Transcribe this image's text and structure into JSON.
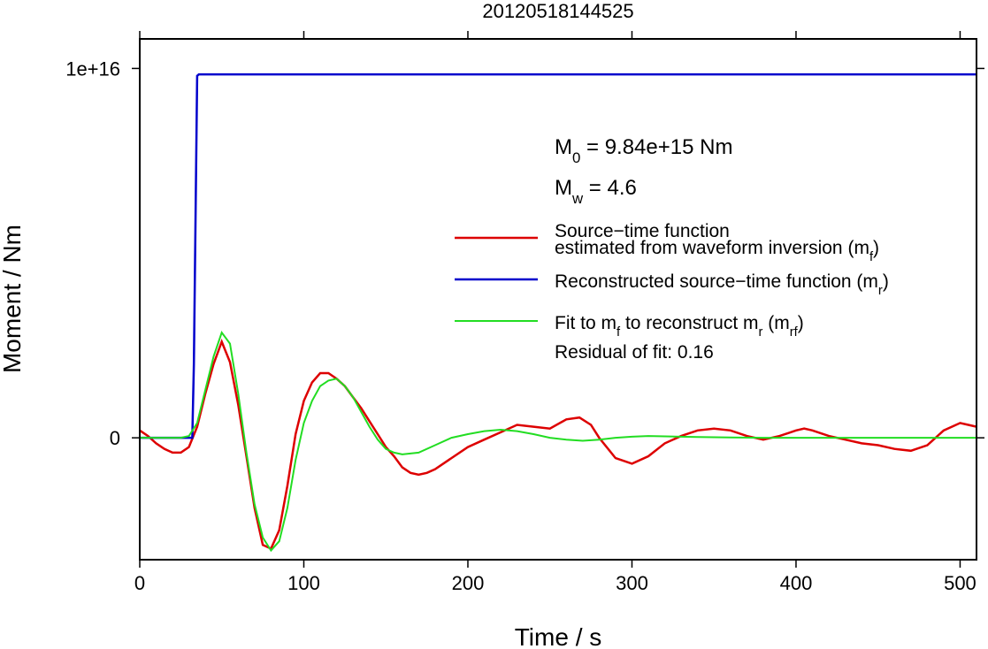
{
  "chart_data": {
    "type": "line",
    "title": "20120518144525",
    "xlabel": "Time / s",
    "ylabel": "Moment / Nm",
    "xlim": [
      0,
      510
    ],
    "ylim": [
      -3300000000000000.0,
      1.08e+16
    ],
    "x_ticks": [
      0,
      100,
      200,
      300,
      400,
      500
    ],
    "x_tick_labels": [
      "0",
      "100",
      "200",
      "300",
      "400",
      "500"
    ],
    "y_ticks": [
      0,
      1e+16
    ],
    "y_tick_labels": [
      "0",
      "1e+16"
    ],
    "grid": false,
    "legend_position": "right",
    "annotations": {
      "m0": {
        "main": "M",
        "sub": "0",
        "rest": " = 9.84e+15 Nm"
      },
      "mw": {
        "main": "M",
        "sub": "w",
        "rest": " = 4.6"
      }
    },
    "legend": [
      {
        "lines": [
          "Source−time function",
          "estimated from waveform inversion (m"
        ],
        "sub": "f",
        "tail": ")",
        "color": "#dd0000"
      },
      {
        "lines": [
          "Reconstructed source−time function (m"
        ],
        "sub": "r",
        "tail": ")",
        "color": "#0000cc"
      },
      {
        "lines": [
          "Fit to m"
        ],
        "sub": "f",
        "tail": " to reconstruct m",
        "sub2": "r",
        "tail2": " (m",
        "sub3": "rf",
        "tail3": ")",
        "color": "#22dd22"
      }
    ],
    "residual_text": "Residual of fit: 0.16",
    "series": [
      {
        "color": "#dd0000",
        "x": [
          0,
          5,
          10,
          15,
          20,
          25,
          30,
          35,
          40,
          45,
          50,
          55,
          60,
          65,
          70,
          75,
          80,
          85,
          90,
          95,
          100,
          105,
          110,
          115,
          120,
          125,
          130,
          135,
          140,
          145,
          150,
          155,
          160,
          165,
          170,
          175,
          180,
          190,
          200,
          210,
          220,
          230,
          240,
          250,
          260,
          268,
          275,
          280,
          290,
          300,
          310,
          320,
          330,
          340,
          350,
          360,
          370,
          380,
          390,
          400,
          405,
          410,
          420,
          430,
          440,
          450,
          460,
          470,
          480,
          490,
          500,
          505,
          510
        ],
        "y": [
          200000000000000.0,
          50000000000000.0,
          -150000000000000.0,
          -300000000000000.0,
          -400000000000000.0,
          -400000000000000.0,
          -250000000000000.0,
          300000000000000.0,
          1200000000000000.0,
          2000000000000000.0,
          2600000000000000.0,
          2050000000000000.0,
          900000000000000.0,
          -500000000000000.0,
          -1900000000000000.0,
          -2900000000000000.0,
          -3000000000000000.0,
          -2500000000000000.0,
          -1300000000000000.0,
          100000000000000.0,
          1000000000000000.0,
          1500000000000000.0,
          1750000000000000.0,
          1750000000000000.0,
          1600000000000000.0,
          1400000000000000.0,
          1100000000000000.0,
          800000000000000.0,
          450000000000000.0,
          100000000000000.0,
          -250000000000000.0,
          -500000000000000.0,
          -800000000000000.0,
          -950000000000000.0,
          -1000000000000000.0,
          -950000000000000.0,
          -850000000000000.0,
          -550000000000000.0,
          -250000000000000.0,
          -50000000000000.0,
          150000000000000.0,
          350000000000000.0,
          300000000000000.0,
          250000000000000.0,
          500000000000000.0,
          550000000000000.0,
          350000000000000.0,
          0.0,
          -550000000000000.0,
          -700000000000000.0,
          -500000000000000.0,
          -150000000000000.0,
          50000000000000.0,
          200000000000000.0,
          250000000000000.0,
          200000000000000.0,
          50000000000000.0,
          -50000000000000.0,
          50000000000000.0,
          200000000000000.0,
          250000000000000.0,
          200000000000000.0,
          50000000000000.0,
          -50000000000000.0,
          -150000000000000.0,
          -200000000000000.0,
          -300000000000000.0,
          -350000000000000.0,
          -200000000000000.0,
          200000000000000.0,
          400000000000000.0,
          350000000000000.0,
          300000000000000.0
        ]
      },
      {
        "color": "#0000cc",
        "x": [
          0,
          32,
          33,
          34,
          35,
          36,
          510
        ],
        "y": [
          0,
          0,
          2000000000000000.0,
          6000000000000000.0,
          9800000000000000.0,
          9840000000000000.0,
          9840000000000000.0
        ]
      },
      {
        "color": "#22dd22",
        "x": [
          0,
          10,
          20,
          25,
          30,
          35,
          40,
          45,
          50,
          55,
          60,
          65,
          70,
          75,
          80,
          85,
          90,
          95,
          100,
          105,
          110,
          115,
          120,
          125,
          130,
          135,
          140,
          145,
          150,
          155,
          160,
          170,
          180,
          190,
          200,
          210,
          220,
          230,
          240,
          250,
          260,
          270,
          280,
          290,
          300,
          310,
          320,
          340,
          360,
          380,
          400,
          450,
          510
        ],
        "y": [
          0,
          0,
          0,
          0,
          50000000000000.0,
          400000000000000.0,
          1300000000000000.0,
          2200000000000000.0,
          2850000000000000.0,
          2550000000000000.0,
          1200000000000000.0,
          -400000000000000.0,
          -1800000000000000.0,
          -2700000000000000.0,
          -3050000000000000.0,
          -2800000000000000.0,
          -1900000000000000.0,
          -600000000000000.0,
          400000000000000.0,
          1000000000000000.0,
          1400000000000000.0,
          1550000000000000.0,
          1600000000000000.0,
          1400000000000000.0,
          1100000000000000.0,
          700000000000000.0,
          300000000000000.0,
          -50000000000000.0,
          -300000000000000.0,
          -400000000000000.0,
          -450000000000000.0,
          -400000000000000.0,
          -200000000000000.0,
          0.0,
          100000000000000.0,
          180000000000000.0,
          220000000000000.0,
          180000000000000.0,
          100000000000000.0,
          0.0,
          -50000000000000.0,
          -80000000000000.0,
          -50000000000000.0,
          0.0,
          30000000000000.0,
          50000000000000.0,
          40000000000000.0,
          20000000000000.0,
          10000000000000.0,
          0.0,
          0.0,
          0.0,
          0.0
        ]
      }
    ]
  }
}
